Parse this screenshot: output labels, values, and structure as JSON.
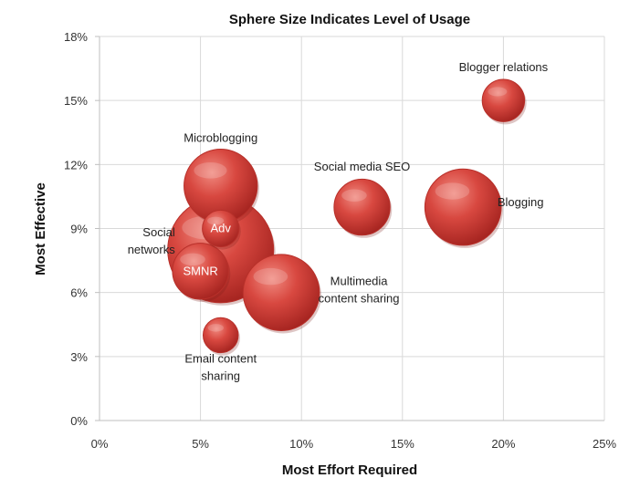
{
  "chart_data": {
    "type": "bubble",
    "title": "Sphere Size Indicates Level of Usage",
    "xlabel": "Most Effort Required",
    "ylabel": "Most Effective",
    "xlim": [
      0,
      25
    ],
    "ylim": [
      0,
      18
    ],
    "x_ticks": [
      "0%",
      "5%",
      "10%",
      "15%",
      "20%",
      "25%"
    ],
    "y_ticks": [
      "0%",
      "3%",
      "6%",
      "9%",
      "12%",
      "15%",
      "18%"
    ],
    "grid": true,
    "bubble_color": "#d43c35",
    "points": [
      {
        "label_lines": [
          "Social",
          "networks"
        ],
        "x": 6.0,
        "y": 8.0,
        "size": 100,
        "label_inside": false
      },
      {
        "label_lines": [
          "Microblogging"
        ],
        "x": 6.0,
        "y": 11.0,
        "size": 48,
        "label_inside": false
      },
      {
        "label_lines": [
          "Multimedia",
          "content sharing"
        ],
        "x": 9.0,
        "y": 6.0,
        "size": 52,
        "label_inside": false
      },
      {
        "label_lines": [
          "Blogging"
        ],
        "x": 18.0,
        "y": 10.0,
        "size": 52,
        "label_inside": false
      },
      {
        "label_lines": [
          "Social media SEO"
        ],
        "x": 13.0,
        "y": 10.0,
        "size": 28,
        "label_inside": false
      },
      {
        "label_lines": [
          "Blogger relations"
        ],
        "x": 20.0,
        "y": 15.0,
        "size": 16,
        "label_inside": false
      },
      {
        "label_lines": [
          "SMNR"
        ],
        "x": 5.0,
        "y": 7.0,
        "size": 28,
        "label_inside": true
      },
      {
        "label_lines": [
          "Adv"
        ],
        "x": 6.0,
        "y": 9.0,
        "size": 12,
        "label_inside": true
      },
      {
        "label_lines": [
          "Email content",
          "sharing"
        ],
        "x": 6.0,
        "y": 4.0,
        "size": 11,
        "label_inside": false
      }
    ]
  }
}
